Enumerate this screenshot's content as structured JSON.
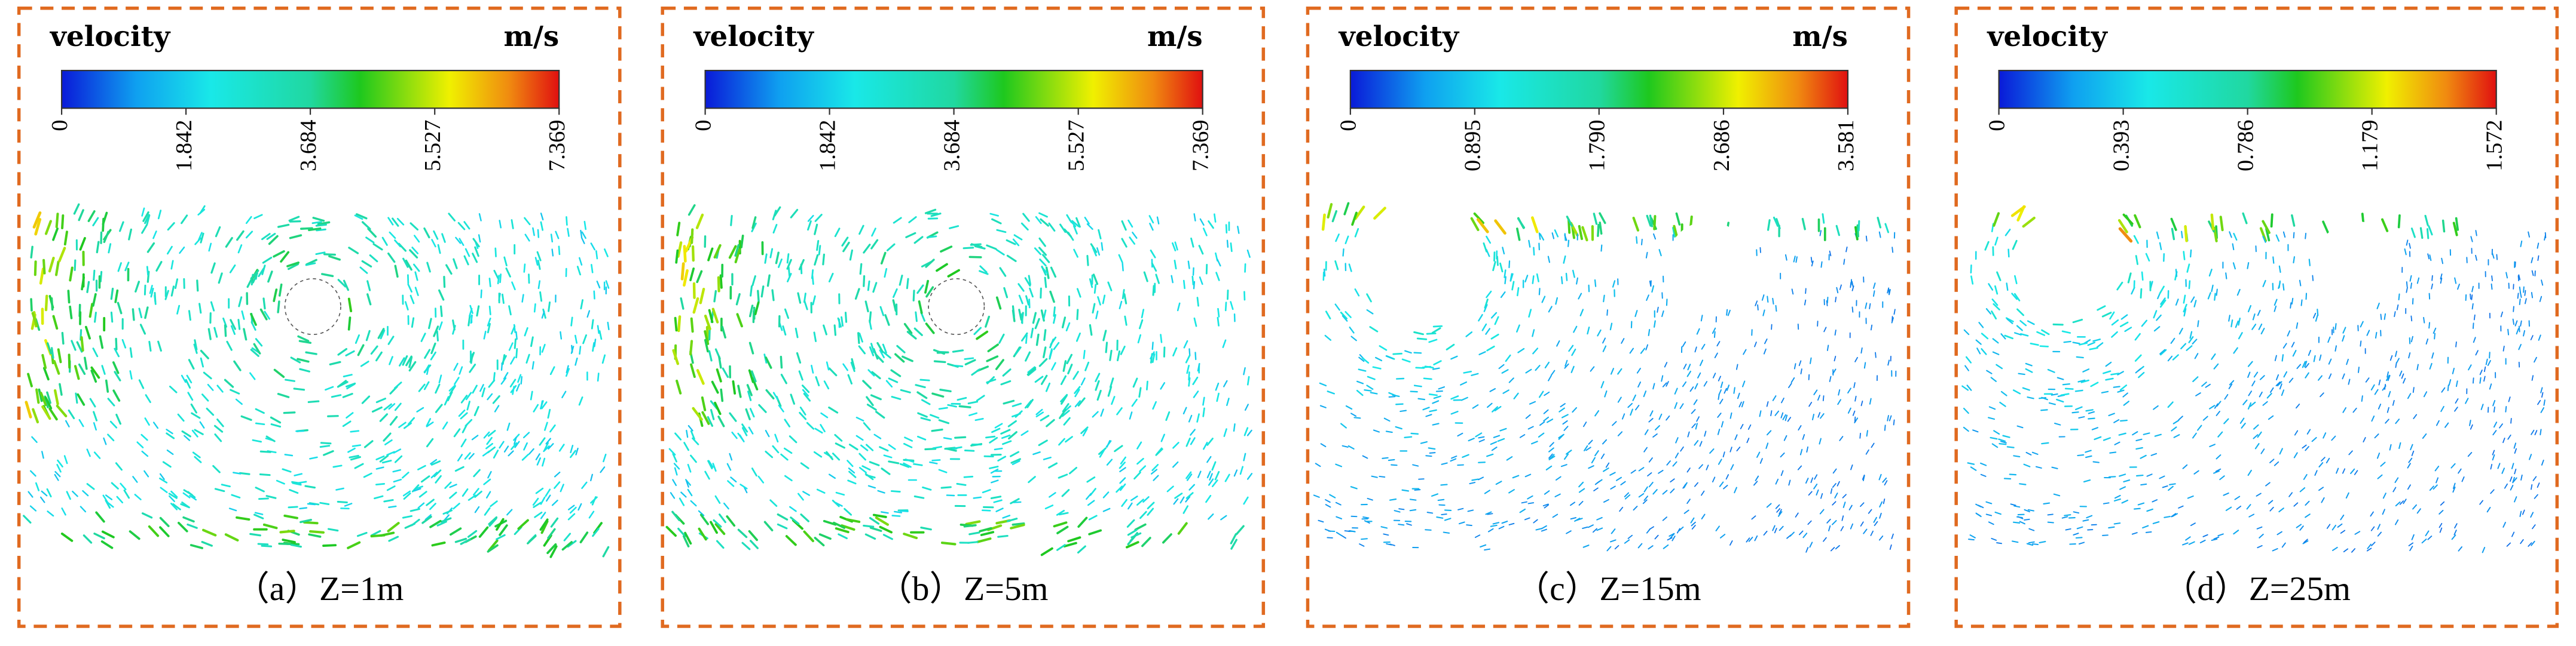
{
  "panels": [
    {
      "legend_title": "velocity",
      "unit": "m/s",
      "colorbar": {
        "range": [
          0,
          7.369
        ],
        "ticks": [
          0,
          1.842,
          3.684,
          5.527,
          7.369
        ]
      },
      "caption": "（a）Z=1m"
    },
    {
      "legend_title": "velocity",
      "unit": "m/s",
      "colorbar": {
        "range": [
          0,
          7.369
        ],
        "ticks": [
          0,
          1.842,
          3.684,
          5.527,
          7.369
        ]
      },
      "caption": "（b）Z=5m"
    },
    {
      "legend_title": "velocity",
      "unit": "m/s",
      "colorbar": {
        "range": [
          0,
          3.581
        ],
        "ticks": [
          0,
          0.895,
          {
            "value": 1.79,
            "label": "1.790"
          },
          2.686,
          3.581
        ]
      },
      "caption": "（c）Z=15m"
    },
    {
      "legend_title": "velocity",
      "colorbar": {
        "range": [
          0,
          1.572
        ],
        "ticks": [
          0,
          0.393,
          0.786,
          1.179,
          1.572
        ]
      },
      "caption": "（d）Z=25m"
    }
  ]
}
